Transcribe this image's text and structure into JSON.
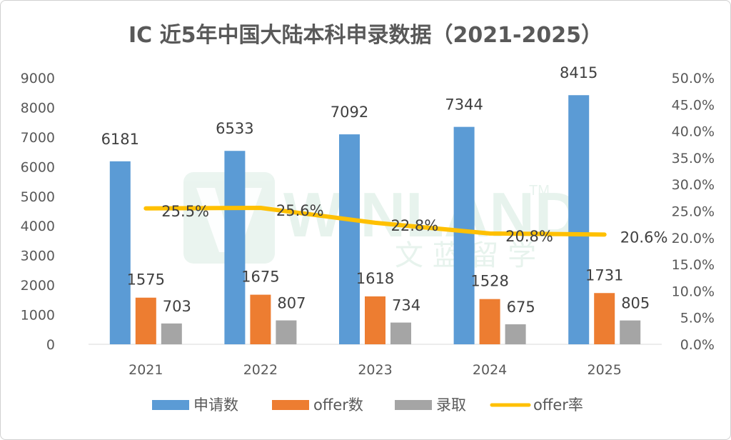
{
  "chart_data": {
    "type": "bar",
    "title": "IC 近5年中国大陆本科申录数据（2021-2025）",
    "categories": [
      "2021",
      "2022",
      "2023",
      "2024",
      "2025"
    ],
    "series": [
      {
        "name": "申请数",
        "kind": "bar",
        "axis": "left",
        "color": "#5b9bd5",
        "values": [
          6181,
          6533,
          7092,
          7344,
          8415
        ],
        "labels": [
          "6181",
          "6533",
          "7092",
          "7344",
          "8415"
        ]
      },
      {
        "name": "offer数",
        "kind": "bar",
        "axis": "left",
        "color": "#ed7d31",
        "values": [
          1575,
          1675,
          1618,
          1528,
          1731
        ],
        "labels": [
          "1575",
          "1675",
          "1618",
          "1528",
          "1731"
        ]
      },
      {
        "name": "录取",
        "kind": "bar",
        "axis": "left",
        "color": "#a5a5a5",
        "values": [
          703,
          807,
          734,
          675,
          805
        ],
        "labels": [
          "703",
          "807",
          "734",
          "675",
          "805"
        ]
      },
      {
        "name": "offer率",
        "kind": "line",
        "axis": "right",
        "color": "#ffc000",
        "values": [
          25.5,
          25.6,
          22.8,
          20.8,
          20.6
        ],
        "labels": [
          "25.5%",
          "25.6%",
          "22.8%",
          "20.8%",
          "20.6%"
        ]
      }
    ],
    "y_left": {
      "min": 0,
      "max": 9000,
      "step": 1000,
      "tick_labels": [
        "0",
        "1000",
        "2000",
        "3000",
        "4000",
        "5000",
        "6000",
        "7000",
        "8000",
        "9000"
      ]
    },
    "y_right": {
      "min": 0,
      "max": 50,
      "step": 5,
      "tick_labels": [
        "0.0%",
        "5.0%",
        "10.0%",
        "15.0%",
        "20.0%",
        "25.0%",
        "30.0%",
        "35.0%",
        "40.0%",
        "45.0%",
        "50.0%"
      ]
    },
    "grid": false,
    "legend_position": "bottom"
  },
  "watermark": {
    "text": "WINLAND",
    "trademark": "TM",
    "subtitle": "文 蓝 留 学",
    "color": "#d9ede3"
  }
}
